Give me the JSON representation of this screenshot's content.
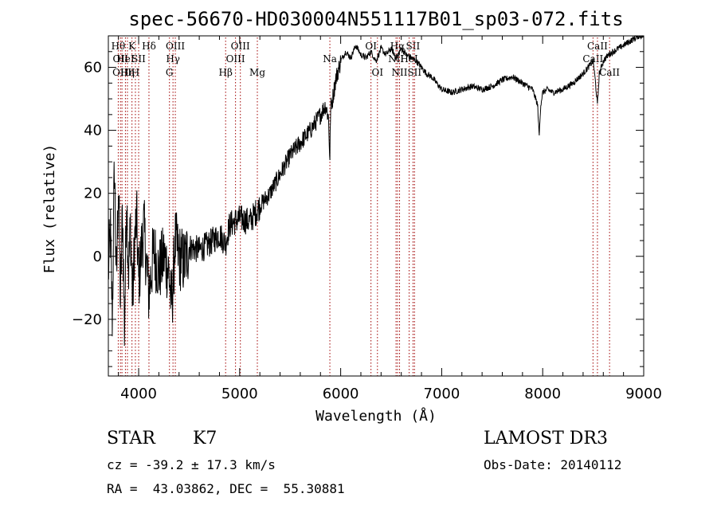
{
  "chart_data": {
    "type": "line",
    "title": "spec-56670-HD030004N551117B01_sp03-072.fits",
    "xlabel": "Wavelength (Å)",
    "ylabel": "Flux (relative)",
    "xlim": [
      3700,
      9000
    ],
    "ylim": [
      -38,
      70
    ],
    "xticks": [
      4000,
      5000,
      6000,
      7000,
      8000,
      9000
    ],
    "yticks": [
      -20,
      0,
      20,
      40,
      60
    ],
    "line_color": "#000000",
    "marker_color": "#a00000",
    "series": [
      {
        "name": "flux",
        "x": [
          3700,
          3720,
          3740,
          3760,
          3780,
          3800,
          3820,
          3840,
          3860,
          3880,
          3900,
          3920,
          3940,
          3960,
          3980,
          4000,
          4050,
          4100,
          4150,
          4200,
          4250,
          4300,
          4320,
          4340,
          4360,
          4400,
          4450,
          4500,
          4600,
          4700,
          4800,
          4860,
          4900,
          5000,
          5100,
          5200,
          5300,
          5400,
          5500,
          5600,
          5700,
          5800,
          5850,
          5880,
          5893,
          5900,
          5920,
          5950,
          6000,
          6050,
          6100,
          6150,
          6200,
          6250,
          6300,
          6350,
          6400,
          6450,
          6500,
          6550,
          6600,
          6650,
          6700,
          6750,
          6800,
          6850,
          6900,
          6950,
          7000,
          7100,
          7200,
          7300,
          7400,
          7500,
          7600,
          7700,
          7800,
          7900,
          7950,
          7965,
          7980,
          8000,
          8050,
          8100,
          8200,
          8300,
          8400,
          8450,
          8500,
          8520,
          8542,
          8560,
          8600,
          8650,
          8700,
          8750,
          8800,
          8850,
          8900,
          8950,
          9000
        ],
        "y": [
          -5,
          8,
          -20,
          30,
          -10,
          25,
          -15,
          15,
          -25,
          20,
          -5,
          10,
          -15,
          5,
          12,
          -8,
          10,
          -12,
          2,
          -5,
          0,
          -5,
          -15,
          -10,
          5,
          0,
          -2,
          3,
          2,
          4,
          7,
          4,
          10,
          12,
          11,
          16,
          20,
          26,
          32,
          36,
          40,
          45,
          48,
          44,
          30,
          47,
          50,
          56,
          62,
          65,
          63,
          67,
          64,
          63,
          65,
          62,
          66,
          64,
          66,
          63,
          66,
          64,
          63,
          62,
          60,
          58,
          57,
          55,
          53,
          52,
          53,
          54,
          53,
          54,
          56,
          57,
          55,
          53,
          48,
          38,
          48,
          52,
          53,
          52,
          53,
          55,
          58,
          60,
          62,
          56,
          48,
          58,
          62,
          64,
          65,
          66,
          67,
          68,
          69,
          70,
          70
        ]
      }
    ],
    "lines": [
      {
        "x": 3798,
        "row": 1,
        "label": "Hθ"
      },
      {
        "x": 3820,
        "row": 2,
        "label": "OII"
      },
      {
        "x": 3835,
        "row": 3,
        "label": "OIII"
      },
      {
        "x": 3869,
        "row": 2,
        "label": "HeI"
      },
      {
        "x": 3889,
        "row": 3,
        "label": "Hη"
      },
      {
        "x": 3934,
        "row": 1,
        "label": "K"
      },
      {
        "x": 3968,
        "row": 3,
        "label": "H"
      },
      {
        "x": 4000,
        "row": 2,
        "label": "SII"
      },
      {
        "x": 4102,
        "row": 1,
        "label": "Hδ"
      },
      {
        "x": 4305,
        "row": 3,
        "label": "G"
      },
      {
        "x": 4340,
        "row": 2,
        "label": "Hγ"
      },
      {
        "x": 4363,
        "row": 1,
        "label": "OIII"
      },
      {
        "x": 4861,
        "row": 3,
        "label": "Hβ"
      },
      {
        "x": 4959,
        "row": 2,
        "label": "OIII"
      },
      {
        "x": 5007,
        "row": 1,
        "label": "OIII"
      },
      {
        "x": 5175,
        "row": 3,
        "label": "Mg"
      },
      {
        "x": 5893,
        "row": 2,
        "label": "Na"
      },
      {
        "x": 6300,
        "row": 1,
        "label": "OI"
      },
      {
        "x": 6364,
        "row": 3,
        "label": "OI"
      },
      {
        "x": 6548,
        "row": 2,
        "label": "NII"
      },
      {
        "x": 6563,
        "row": 1,
        "label": "Hα"
      },
      {
        "x": 6583,
        "row": 3,
        "label": "NII"
      },
      {
        "x": 6678,
        "row": 2,
        "label": "HeI"
      },
      {
        "x": 6716,
        "row": 1,
        "label": "SII"
      },
      {
        "x": 6731,
        "row": 3,
        "label": "SII"
      },
      {
        "x": 8498,
        "row": 2,
        "label": "CaII"
      },
      {
        "x": 8542,
        "row": 1,
        "label": "CaII"
      },
      {
        "x": 8662,
        "row": 3,
        "label": "CaII"
      }
    ]
  },
  "info": {
    "object_class": "STAR",
    "subclass": "K7",
    "survey": "LAMOST DR3",
    "redshift_line": "cz = -39.2 ± 17.3 km/s",
    "obs_date": "Obs-Date: 20140112",
    "coords": "RA =  43.03862, DEC =  55.30881"
  }
}
